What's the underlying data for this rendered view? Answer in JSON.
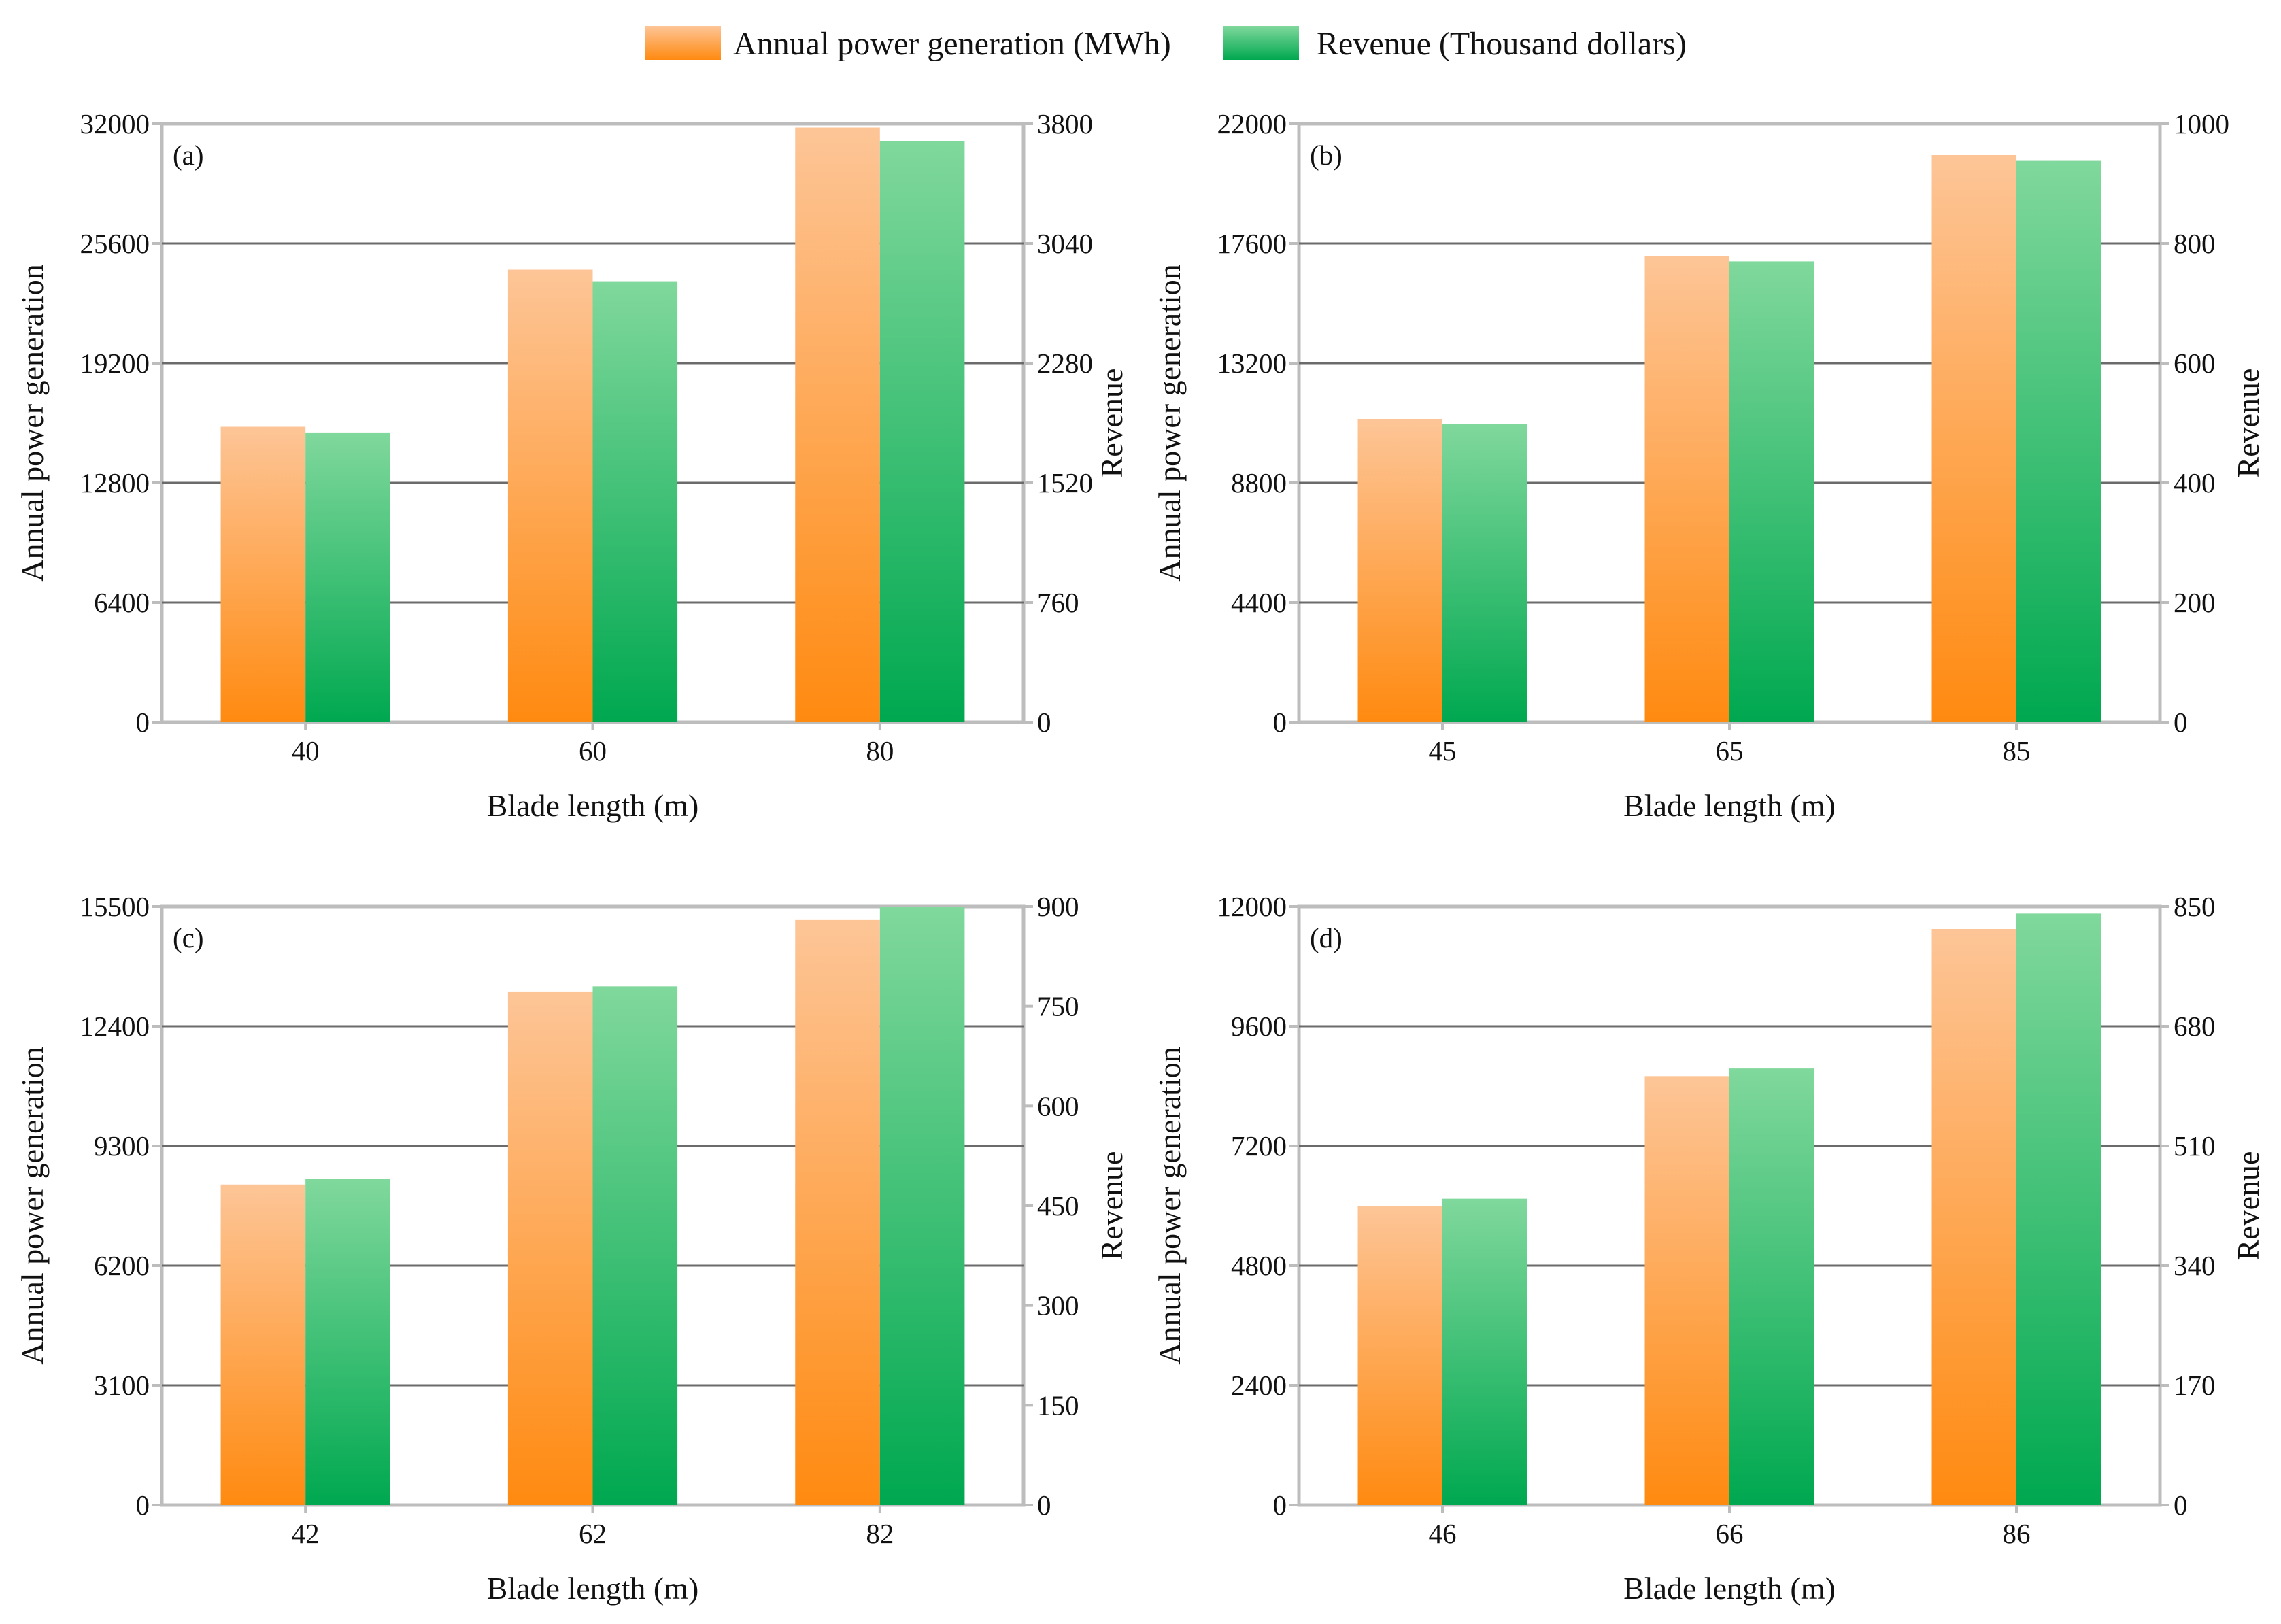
{
  "legend": {
    "power_label": "Annual power generation (MWh)",
    "revenue_label": "Revenue (Thousand dollars)"
  },
  "colors": {
    "orange_top": "#fdc597",
    "orange_bottom": "#ff8a10",
    "green_top": "#80d89c",
    "green_bottom": "#00a850",
    "gridline": "#6b6b6b",
    "frame": "#bdbdbd",
    "text": "#111111"
  },
  "chart_data": [
    {
      "type": "bar",
      "panel_label": "(a)",
      "title": "",
      "xlabel": "Blade length (m)",
      "ylabel_left": "Annual power generation",
      "ylabel_right": "Revenue",
      "categories": [
        "40",
        "60",
        "80"
      ],
      "ylim_left": [
        0,
        32000
      ],
      "ylim_right": [
        0,
        3800
      ],
      "yticks_left": [
        "0",
        "6400",
        "12800",
        "19200",
        "25600",
        "32000"
      ],
      "yticks_right": [
        "0",
        "760",
        "1520",
        "2280",
        "3040",
        "3800"
      ],
      "series": [
        {
          "name": "Annual power generation (MWh)",
          "axis": "left",
          "values": [
            15800,
            24200,
            31800
          ]
        },
        {
          "name": "Revenue (Thousand dollars)",
          "axis": "right",
          "values": [
            1840,
            2800,
            3690
          ]
        }
      ]
    },
    {
      "type": "bar",
      "panel_label": "(b)",
      "title": "",
      "xlabel": "Blade length (m)",
      "ylabel_left": "Annual power generation",
      "ylabel_right": "Revenue",
      "categories": [
        "45",
        "65",
        "85"
      ],
      "ylim_left": [
        0,
        22000
      ],
      "ylim_right": [
        0,
        1000
      ],
      "yticks_left": [
        "0",
        "4400",
        "8800",
        "13200",
        "17600",
        "22000"
      ],
      "yticks_right": [
        "0",
        "200",
        "400",
        "600",
        "800",
        "1000"
      ],
      "series": [
        {
          "name": "Annual power generation (MWh)",
          "axis": "left",
          "values": [
            11150,
            17150,
            20850
          ]
        },
        {
          "name": "Revenue (Thousand dollars)",
          "axis": "right",
          "values": [
            498,
            770,
            938
          ]
        }
      ]
    },
    {
      "type": "bar",
      "panel_label": "(c)",
      "title": "",
      "xlabel": "Blade length (m)",
      "ylabel_left": "Annual power generation",
      "ylabel_right": "Revenue",
      "categories": [
        "42",
        "62",
        "82"
      ],
      "ylim_left": [
        0,
        15500
      ],
      "ylim_right": [
        0,
        900
      ],
      "yticks_left": [
        "0",
        "3100",
        "6200",
        "9300",
        "12400",
        "15500"
      ],
      "yticks_right": [
        "0",
        "150",
        "300",
        "450",
        "600",
        "750",
        "900"
      ],
      "series": [
        {
          "name": "Annual power generation (MWh)",
          "axis": "left",
          "values": [
            8300,
            13300,
            15150
          ]
        },
        {
          "name": "Revenue (Thousand dollars)",
          "axis": "right",
          "values": [
            490,
            780,
            900
          ]
        }
      ]
    },
    {
      "type": "bar",
      "panel_label": "(d)",
      "title": "",
      "xlabel": "Blade length (m)",
      "ylabel_left": "Annual power generation",
      "ylabel_right": "Revenue",
      "categories": [
        "46",
        "66",
        "86"
      ],
      "ylim_left": [
        0,
        12000
      ],
      "ylim_right": [
        0,
        850
      ],
      "yticks_left": [
        "0",
        "2400",
        "4800",
        "7200",
        "9600",
        "12000"
      ],
      "yticks_right": [
        "0",
        "170",
        "340",
        "510",
        "680",
        "850"
      ],
      "series": [
        {
          "name": "Annual power generation (MWh)",
          "axis": "left",
          "values": [
            6000,
            8600,
            11550
          ]
        },
        {
          "name": "Revenue (Thousand dollars)",
          "axis": "right",
          "values": [
            435,
            620,
            840
          ]
        }
      ]
    }
  ]
}
